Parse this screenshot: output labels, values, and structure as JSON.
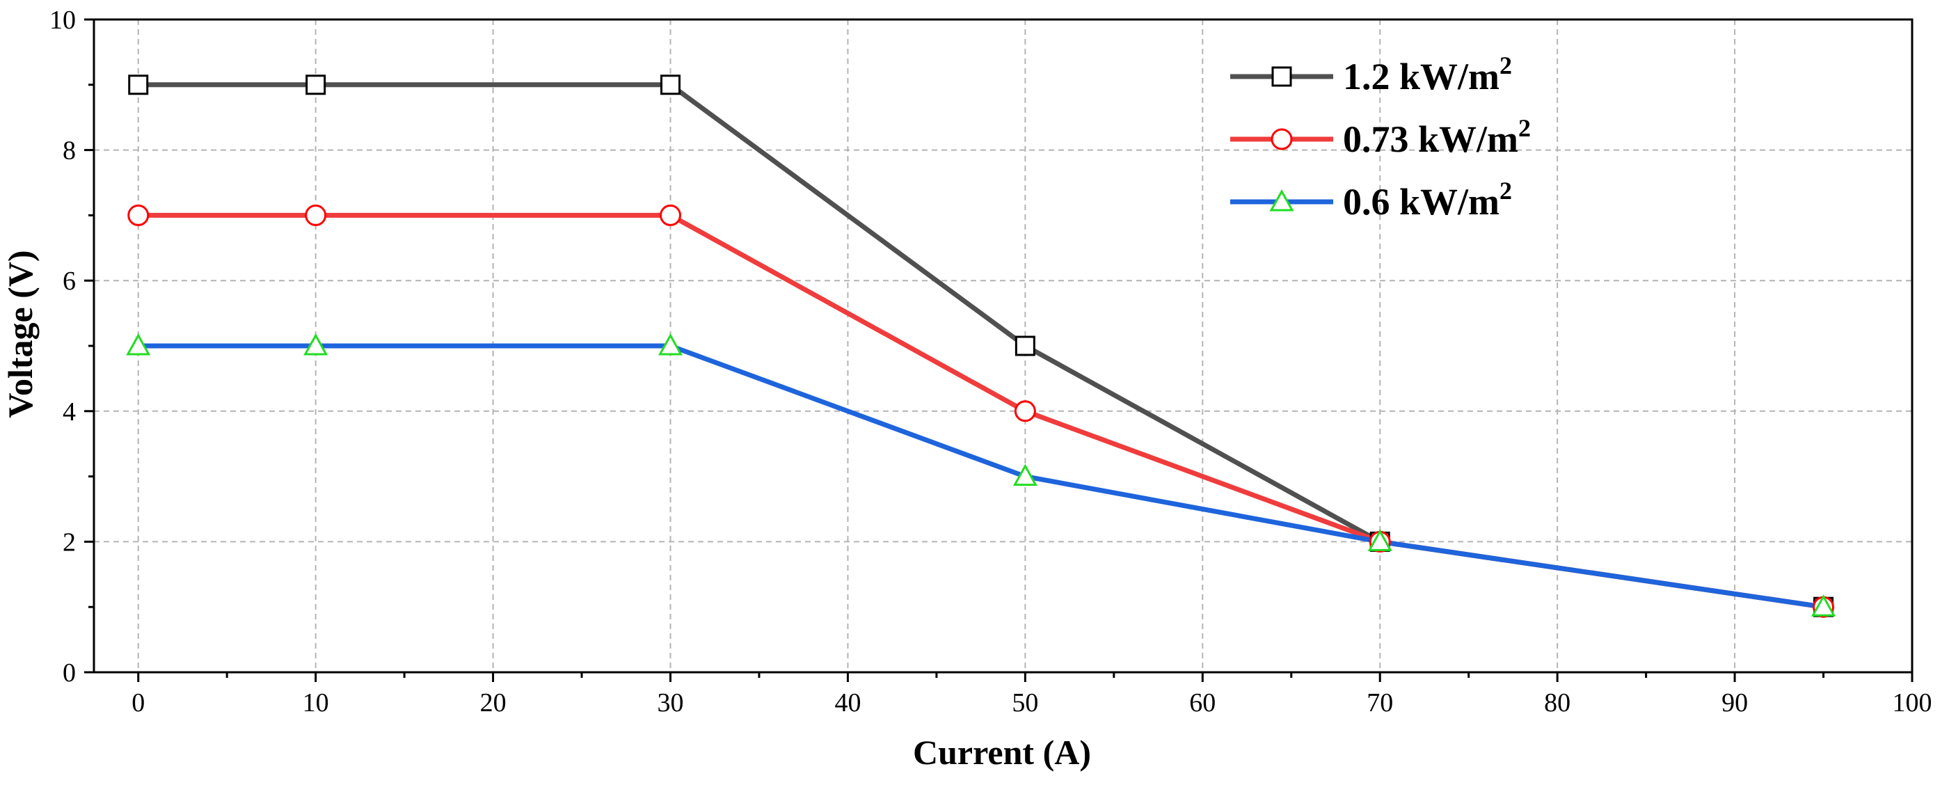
{
  "chart_data": {
    "type": "line",
    "title": "",
    "xlabel": "Current (A)",
    "ylabel": "Voltage (V)",
    "xlim": [
      -2.5,
      100
    ],
    "ylim": [
      0,
      10
    ],
    "x_ticks": [
      0,
      10,
      20,
      30,
      40,
      50,
      60,
      70,
      80,
      90,
      100
    ],
    "y_ticks": [
      0,
      2,
      4,
      6,
      8,
      10
    ],
    "grid": true,
    "legend_position": "top-right",
    "series": [
      {
        "name": "1.2 kW/m",
        "superscript": "2",
        "color": "#505050",
        "marker": "square",
        "marker_edge": "#000000",
        "x": [
          0,
          10,
          30,
          50,
          70,
          95
        ],
        "y": [
          9,
          9,
          9,
          5,
          2,
          1
        ]
      },
      {
        "name": "0.73 kW/m",
        "superscript": "2",
        "color": "#f03c3c",
        "marker": "circle",
        "marker_edge": "#ff0000",
        "x": [
          0,
          10,
          30,
          50,
          70,
          95
        ],
        "y": [
          7,
          7,
          7,
          4,
          2,
          1
        ]
      },
      {
        "name": "0.6 kW/m",
        "superscript": "2",
        "color": "#1e64dc",
        "marker": "triangle",
        "marker_edge": "#22dd22",
        "x": [
          0,
          10,
          30,
          50,
          70,
          95
        ],
        "y": [
          5,
          5,
          5,
          3,
          2,
          1
        ]
      }
    ]
  }
}
